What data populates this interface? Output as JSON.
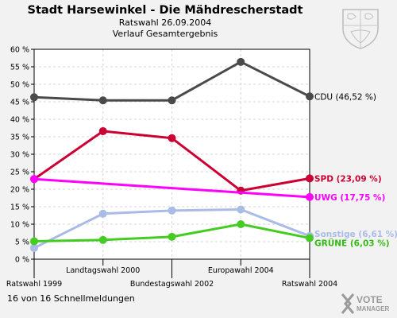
{
  "header": {
    "title": "Stadt Harsewinkel - Die Mähdrescherstadt",
    "subtitle": "Ratswahl 26.09.2004",
    "subtitle2": "Verlauf Gesamtergebnis"
  },
  "footer": {
    "text": "16 von 16 Schnellmeldungen"
  },
  "branding": {
    "logo_line1": "VOTE",
    "logo_line2": "MANAGER"
  },
  "chart_data": {
    "type": "line",
    "title": "Stadt Harsewinkel - Die Mähdrescherstadt",
    "subtitle": "Ratswahl 26.09.2004 / Verlauf Gesamtergebnis",
    "categories": [
      "Ratswahl 1999",
      "Landtagswahl 2000",
      "Bundestagswahl 2002",
      "Europawahl 2004",
      "Ratswahl 2004"
    ],
    "category_label_rows": [
      "low",
      "high",
      "low",
      "high",
      "low"
    ],
    "ylim": [
      0,
      60
    ],
    "yticks": [
      0,
      5,
      10,
      15,
      20,
      25,
      30,
      35,
      40,
      45,
      50,
      55,
      60
    ],
    "ytick_suffix": " %",
    "grid": true,
    "series": [
      {
        "name": "CDU",
        "values": [
          46.3,
          45.4,
          45.4,
          56.4,
          46.52
        ],
        "color": "#4a4a4a",
        "label": "CDU (46,52 %)",
        "label_color": "#000000"
      },
      {
        "name": "SPD",
        "values": [
          22.9,
          36.6,
          34.6,
          19.6,
          23.09
        ],
        "color": "#cc0033",
        "label": "SPD (23,09 %)",
        "label_color": "#cc0033"
      },
      {
        "name": "UWG",
        "values": [
          22.9,
          null,
          null,
          null,
          17.75
        ],
        "color": "#ff00ff",
        "label": "UWG (17,75 %)",
        "label_color": "#ff00ff"
      },
      {
        "name": "Sonstige",
        "values": [
          3.2,
          13.0,
          13.9,
          14.2,
          6.61
        ],
        "color": "#aabbe6",
        "label": "Sonstige (6,61 %)",
        "label_color": "#aabbe6"
      },
      {
        "name": "GRÜNE",
        "values": [
          5.1,
          5.5,
          6.4,
          10.0,
          6.03
        ],
        "color": "#44cc22",
        "label": "GRÜNE (6,03 %)",
        "label_color": "#33bb11"
      }
    ]
  }
}
